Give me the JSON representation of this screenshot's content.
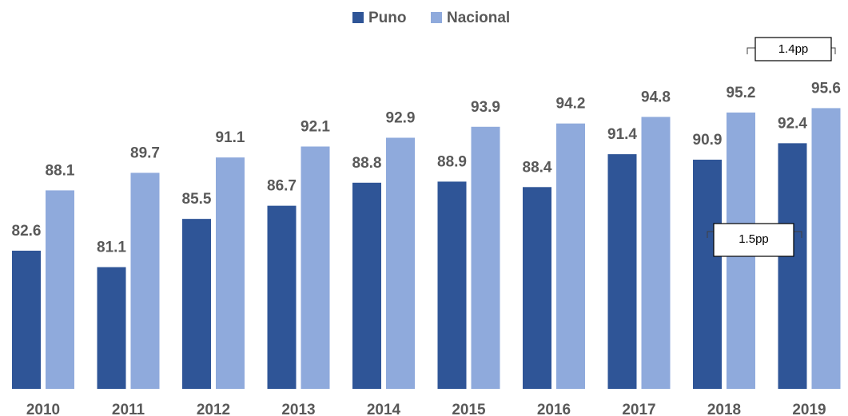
{
  "chart_data": {
    "type": "bar",
    "categories": [
      "2010",
      "2011",
      "2012",
      "2013",
      "2014",
      "2015",
      "2016",
      "2017",
      "2018",
      "2019"
    ],
    "series": [
      {
        "name": "Puno",
        "color": "#2f5597",
        "values": [
          82.6,
          81.1,
          85.5,
          86.7,
          88.8,
          88.9,
          88.4,
          91.4,
          90.9,
          92.4
        ]
      },
      {
        "name": "Nacional",
        "color": "#8faadc",
        "values": [
          88.1,
          89.7,
          91.1,
          92.1,
          92.9,
          93.9,
          94.2,
          94.8,
          95.2,
          95.6
        ]
      }
    ],
    "ylim": [
      70,
      100
    ],
    "annotations": [
      "1.4pp",
      "1.5pp"
    ]
  }
}
